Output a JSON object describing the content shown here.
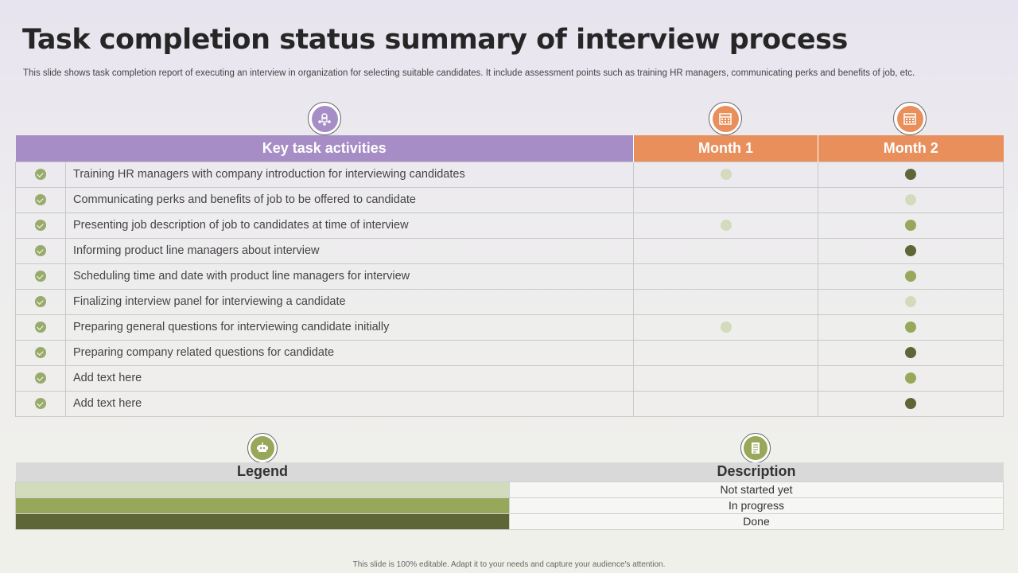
{
  "title": "Task completion status summary of interview process",
  "subtitle": "This slide shows task completion report of executing an interview in organization for selecting suitable candidates. It include assessment points such as training HR managers, communicating perks and benefits of job, etc.",
  "colors": {
    "not_started": "#d3dbbd",
    "in_progress": "#98a85a",
    "done": "#5e6637",
    "check": "#98ab6a",
    "purple": "#a78dc6",
    "orange": "#e88f5c"
  },
  "icons": {
    "key_tasks": "team-meeting-icon",
    "month1": "calendar-icon",
    "month2": "calendar-icon",
    "legend": "robot-icon",
    "description": "document-icon"
  },
  "table": {
    "headers": [
      "Key task activities",
      "Month 1",
      "Month 2"
    ],
    "rows": [
      {
        "task": "Training HR managers with company introduction for interviewing candidates",
        "m1": "not_started",
        "m2": "done"
      },
      {
        "task": "Communicating perks and benefits of job to be offered to candidate",
        "m1": "",
        "m2": "not_started"
      },
      {
        "task": "Presenting job description of job to candidates at time of interview",
        "m1": "not_started",
        "m2": "in_progress"
      },
      {
        "task": "Informing product line managers about interview",
        "m1": "",
        "m2": "done"
      },
      {
        "task": "Scheduling time and date with product line managers for interview",
        "m1": "",
        "m2": "in_progress"
      },
      {
        "task": "Finalizing interview panel for interviewing a candidate",
        "m1": "",
        "m2": "not_started"
      },
      {
        "task": "Preparing general questions for interviewing candidate initially",
        "m1": "not_started",
        "m2": "in_progress"
      },
      {
        "task": "Preparing company related questions for candidate",
        "m1": "",
        "m2": "done"
      },
      {
        "task": "Add text here",
        "m1": "",
        "m2": "in_progress"
      },
      {
        "task": "Add text here",
        "m1": "",
        "m2": "done"
      }
    ]
  },
  "legend": {
    "headers": [
      "Legend",
      "Description"
    ],
    "items": [
      {
        "status": "not_started",
        "label": "Not started yet"
      },
      {
        "status": "in_progress",
        "label": "In progress"
      },
      {
        "status": "done",
        "label": "Done"
      }
    ]
  },
  "footer": "This slide is 100% editable. Adapt it to your needs and capture your audience's attention."
}
